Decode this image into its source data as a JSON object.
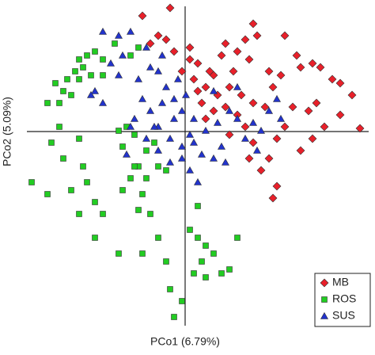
{
  "chart_data": {
    "type": "scatter",
    "xlabel": "PCo1 (6.79%)",
    "ylabel": "PCo2 (5.09%)",
    "xlim": [
      -200,
      232
    ],
    "ylim": [
      -245,
      158
    ],
    "legend": "lower right",
    "series": [
      {
        "name": "MB",
        "color": "#e8202a",
        "marker": "diamond",
        "x": [
          -54,
          -19,
          -34,
          -24,
          -44,
          -14,
          6,
          -4,
          11,
          16,
          26,
          36,
          46,
          51,
          66,
          76,
          86,
          91,
          81,
          61,
          56,
          71,
          86,
          101,
          111,
          106,
          121,
          126,
          141,
          146,
          161,
          171,
          186,
          196,
          211,
          196,
          176,
          161,
          146,
          126,
          116,
          106,
          116,
          96,
          81,
          86,
          76,
          66,
          51,
          36,
          21,
          26,
          56,
          166,
          156,
          136,
          221,
          31,
          16,
          6,
          41,
          111
        ],
        "y": [
          146,
          156,
          121,
          116,
          111,
          101,
          91,
          76,
          66,
          51,
          56,
          71,
          96,
          111,
          101,
          116,
          136,
          121,
          91,
          76,
          56,
          46,
          36,
          31,
          56,
          76,
          71,
          121,
          96,
          81,
          86,
          81,
          66,
          61,
          46,
          21,
          6,
          -9,
          -24,
          6,
          -9,
          -34,
          -69,
          -49,
          -34,
          -14,
          6,
          21,
          31,
          26,
          36,
          16,
          -4,
          36,
          26,
          31,
          4,
          76,
          86,
          106,
          46,
          -84
        ]
      },
      {
        "name": "ROS",
        "color": "#22cc22",
        "marker": "square",
        "x": [
          -164,
          -154,
          -159,
          -144,
          -134,
          -129,
          -124,
          -114,
          -104,
          -134,
          -139,
          -149,
          -119,
          -104,
          -174,
          -159,
          -169,
          -154,
          -134,
          -129,
          -194,
          -174,
          -144,
          -124,
          -114,
          -104,
          -134,
          -84,
          -114,
          -79,
          -69,
          -59,
          -54,
          -49,
          -79,
          -84,
          -74,
          -64,
          -49,
          -59,
          -44,
          -34,
          -54,
          -24,
          6,
          16,
          26,
          36,
          21,
          26,
          46,
          56,
          11,
          -4,
          -19,
          -14,
          -34,
          -24,
          -39,
          -69,
          -59,
          -89,
          -64,
          16,
          66
        ],
        "y": [
          61,
          51,
          36,
          46,
          66,
          81,
          96,
          101,
          91,
          91,
          76,
          66,
          71,
          71,
          36,
          6,
          -14,
          -34,
          -9,
          -44,
          -64,
          -79,
          -74,
          -64,
          -89,
          -104,
          -104,
          -154,
          -134,
          -74,
          -59,
          -44,
          -79,
          -24,
          -19,
          1,
          6,
          -4,
          -59,
          -99,
          -104,
          -134,
          -154,
          -164,
          -124,
          -134,
          -144,
          -154,
          -164,
          -184,
          -179,
          -174,
          -179,
          -214,
          -199,
          -234,
          -44,
          -49,
          -14,
          96,
          106,
          111,
          -44,
          -94,
          -134
        ]
      },
      {
        "name": "SUS",
        "color": "#2233cc",
        "marker": "triangle",
        "x": [
          -104,
          -84,
          -69,
          -79,
          -94,
          -114,
          -104,
          -119,
          -84,
          -59,
          -44,
          -34,
          -24,
          -9,
          -29,
          -44,
          -54,
          -64,
          -34,
          -14,
          -4,
          11,
          26,
          41,
          56,
          66,
          86,
          106,
          121,
          96,
          76,
          46,
          36,
          21,
          11,
          -4,
          -19,
          -34,
          -49,
          -69,
          -74,
          6,
          66,
          36,
          -19,
          16,
          -14,
          1,
          -29,
          -4,
          116,
          -49,
          6,
          51,
          91,
          -39
        ],
        "y": [
          126,
          121,
          126,
          96,
          86,
          51,
          36,
          46,
          71,
          66,
          81,
          76,
          56,
          66,
          36,
          26,
          41,
          16,
          6,
          16,
          26,
          16,
          1,
          11,
          26,
          16,
          11,
          26,
          16,
          1,
          -9,
          -19,
          -34,
          -29,
          -14,
          -19,
          -9,
          -24,
          -9,
          6,
          -29,
          -49,
          56,
          51,
          -39,
          -64,
          41,
          46,
          96,
          -34,
          41,
          106,
          -4,
          -39,
          -24,
          6
        ]
      }
    ]
  }
}
